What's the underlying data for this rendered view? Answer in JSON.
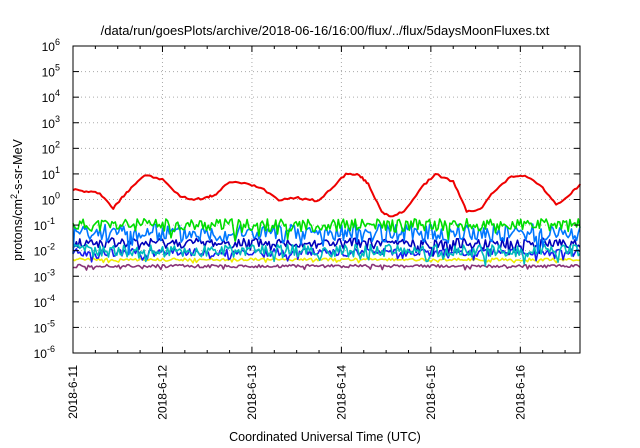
{
  "chart_data": {
    "type": "line",
    "title": "/data/run/goesPlots/archive/2018-06-16/16:00/flux/../flux/5daysMoonFluxes.txt",
    "xlabel": "Coordinated Universal Time (UTC)",
    "ylabel_pre": "protons/cm",
    "ylabel_sup": "2",
    "ylabel_post": "-s-sr-MeV",
    "yscale": "log",
    "ylim": [
      1e-06,
      1000000.0
    ],
    "y_ticks": [
      {
        "base": "10",
        "exp": "6"
      },
      {
        "base": "10",
        "exp": "5"
      },
      {
        "base": "10",
        "exp": "4"
      },
      {
        "base": "10",
        "exp": "3"
      },
      {
        "base": "10",
        "exp": "2"
      },
      {
        "base": "10",
        "exp": "1"
      },
      {
        "base": "10",
        "exp": "0"
      },
      {
        "base": "10",
        "exp": "-1"
      },
      {
        "base": "10",
        "exp": "-2"
      },
      {
        "base": "10",
        "exp": "-3"
      },
      {
        "base": "10",
        "exp": "-4"
      },
      {
        "base": "10",
        "exp": "-5"
      },
      {
        "base": "10",
        "exp": "-6"
      }
    ],
    "xlim": [
      "2018-06-11 00:00",
      "2018-06-16 16:00"
    ],
    "x_ticks": [
      "2018-6-11",
      "2018-6-12",
      "2018-6-13",
      "2018-6-14",
      "2018-6-15",
      "2018-6-16"
    ],
    "grid": true,
    "series": [
      {
        "color": "#ee0000",
        "x_days": [
          0,
          0.15,
          0.3,
          0.45,
          0.55,
          0.65,
          0.8,
          1.0,
          1.2,
          1.35,
          1.5,
          1.6,
          1.75,
          1.95,
          2.1,
          2.3,
          2.5,
          2.6,
          2.75,
          2.9,
          3.05,
          3.2,
          3.3,
          3.45,
          3.55,
          3.7,
          3.9,
          4.05,
          4.25,
          4.4,
          4.55,
          4.7,
          4.9,
          5.05,
          5.25,
          5.4,
          5.55,
          5.67
        ],
        "values": [
          2.5,
          2,
          1.8,
          0.45,
          1.2,
          3,
          9,
          6,
          1.3,
          1,
          1.2,
          1.6,
          5,
          4,
          3,
          1,
          1.2,
          1,
          0.9,
          3,
          10,
          9,
          4,
          0.35,
          0.2,
          0.35,
          3,
          10,
          5,
          0.35,
          0.4,
          2,
          8,
          9,
          3,
          0.6,
          1.5,
          4
        ]
      },
      {
        "color": "#00dd00",
        "base": 0.1,
        "amp": 0.25,
        "seed": 11
      },
      {
        "color": "#0077ff",
        "base": 0.05,
        "amp": 0.35,
        "seed": 23
      },
      {
        "color": "#00bbbb",
        "base": 0.01,
        "amp": 0.25,
        "seed": 37
      },
      {
        "color": "#0000bb",
        "base": 0.02,
        "amp": 0.2,
        "seed": 41
      },
      {
        "color": "#1a1aee",
        "base": 0.0085,
        "amp": 0.15,
        "seed": 53
      },
      {
        "color": "#eeee00",
        "base": 0.0045,
        "amp": 0.05,
        "seed": 61
      },
      {
        "color": "#883377",
        "base": 0.0025,
        "amp": 0.06,
        "seed": 71
      }
    ]
  }
}
